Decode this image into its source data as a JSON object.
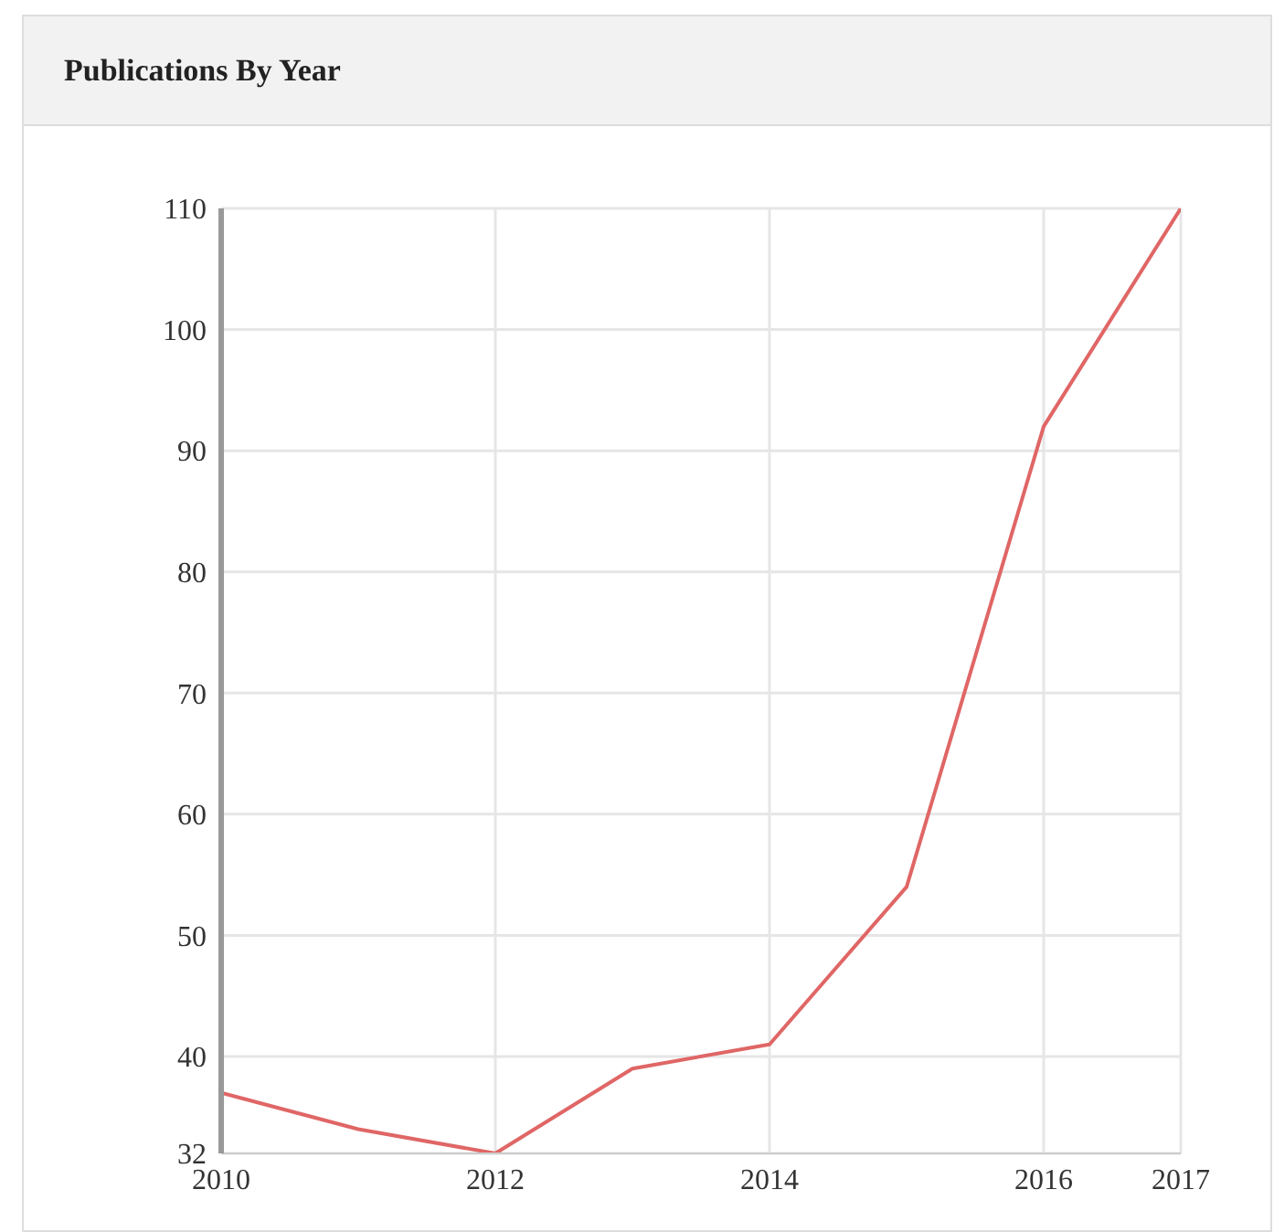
{
  "chart_data": {
    "type": "line",
    "title": "Publications By Year",
    "x": [
      2010,
      2011,
      2012,
      2013,
      2014,
      2015,
      2016,
      2017
    ],
    "series": [
      {
        "color": "#e06666",
        "values": [
          37,
          34,
          32,
          39,
          41,
          54,
          92,
          110
        ]
      }
    ],
    "xlim": [
      2010,
      2017
    ],
    "xticks": [
      2010,
      2012,
      2014,
      2016,
      2017
    ],
    "ylim": [
      32,
      110
    ],
    "yticks": [
      32,
      40,
      50,
      60,
      70,
      80,
      90,
      100,
      110
    ],
    "grid": true,
    "legend": false
  }
}
